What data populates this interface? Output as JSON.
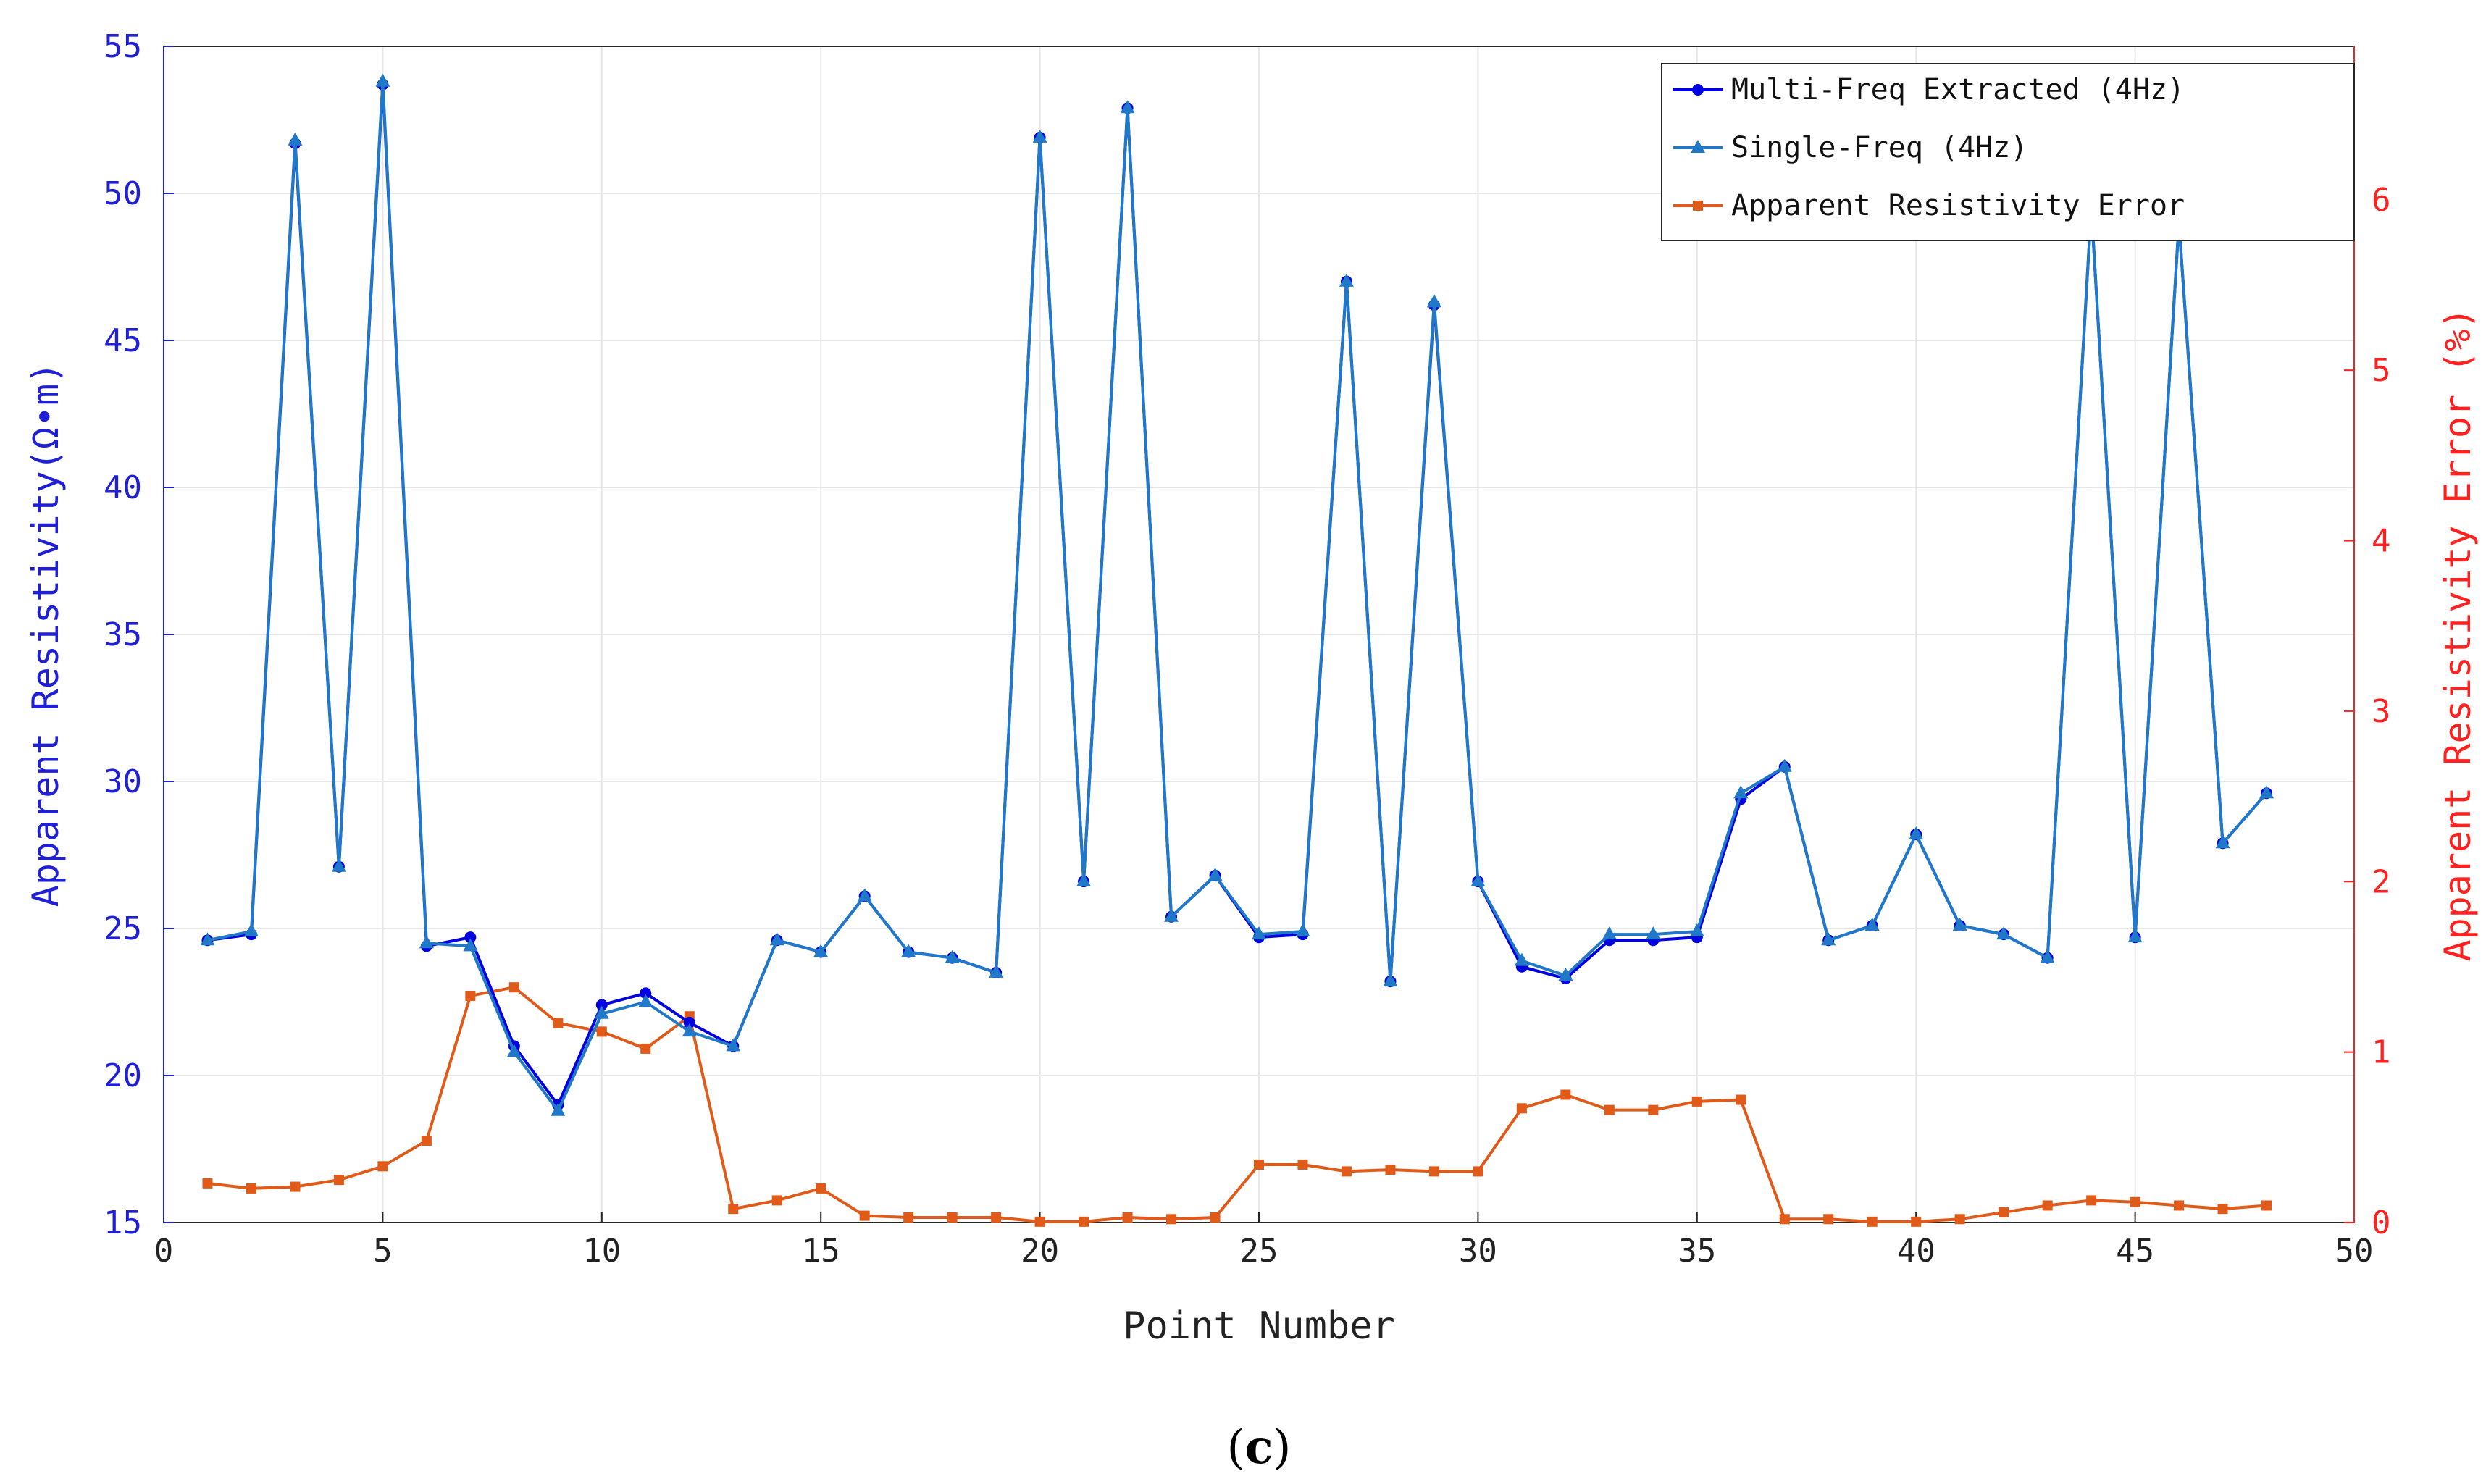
{
  "chart_data": {
    "type": "line",
    "caption_open": "(",
    "caption_letter": "c",
    "caption_close": ")",
    "xlabel": "Point Number",
    "ylabel_left": "Apparent Resistivity(Ω•m)",
    "ylabel_right": "Apparent Resistivity Error (%)",
    "xlim": [
      0,
      50
    ],
    "ylim_left": [
      15,
      55
    ],
    "ylim_right": [
      0,
      6.9
    ],
    "xticks": [
      0,
      5,
      10,
      15,
      20,
      25,
      30,
      35,
      40,
      45,
      50
    ],
    "yticks_left": [
      15,
      20,
      25,
      30,
      35,
      40,
      45,
      50,
      55
    ],
    "yticks_right": [
      0,
      1,
      2,
      3,
      4,
      5,
      6
    ],
    "grid": true,
    "legend_position": "top-right",
    "x": [
      1,
      2,
      3,
      4,
      5,
      6,
      7,
      8,
      9,
      10,
      11,
      12,
      13,
      14,
      15,
      16,
      17,
      18,
      19,
      20,
      21,
      22,
      23,
      24,
      25,
      26,
      27,
      28,
      29,
      30,
      31,
      32,
      33,
      34,
      35,
      36,
      37,
      38,
      39,
      40,
      41,
      42,
      43,
      44,
      45,
      46,
      47,
      48
    ],
    "series": [
      {
        "name": "Multi-Freq Extracted (4Hz)",
        "axis": "left",
        "color": "#0000e0",
        "marker": "circle",
        "values": [
          24.6,
          24.8,
          51.7,
          27.1,
          53.7,
          24.4,
          24.7,
          21.0,
          19.0,
          22.4,
          22.8,
          21.8,
          21.0,
          24.6,
          24.2,
          26.1,
          24.2,
          24.0,
          23.5,
          51.9,
          26.6,
          52.9,
          25.4,
          26.8,
          24.7,
          24.8,
          47.0,
          23.2,
          46.2,
          26.6,
          23.7,
          23.3,
          24.6,
          24.6,
          24.7,
          29.4,
          30.5,
          24.6,
          25.1,
          28.2,
          25.1,
          24.8,
          24.0,
          49.5,
          24.7,
          49.0,
          27.9,
          29.6
        ]
      },
      {
        "name": "Single-Freq (4Hz)",
        "axis": "left",
        "color": "#1f78c8",
        "marker": "triangle",
        "values": [
          24.6,
          24.9,
          51.8,
          27.1,
          53.8,
          24.5,
          24.4,
          20.8,
          18.8,
          22.1,
          22.5,
          21.5,
          21.0,
          24.6,
          24.2,
          26.1,
          24.2,
          24.0,
          23.5,
          51.9,
          26.6,
          52.9,
          25.4,
          26.8,
          24.8,
          24.9,
          47.0,
          23.2,
          46.3,
          26.6,
          23.9,
          23.4,
          24.8,
          24.8,
          24.9,
          29.6,
          30.5,
          24.6,
          25.1,
          28.2,
          25.1,
          24.8,
          24.0,
          49.5,
          24.7,
          49.0,
          27.9,
          29.6
        ]
      },
      {
        "name": "Apparent Resistivity Error",
        "axis": "right",
        "color": "#e05a1a",
        "marker": "square",
        "values": [
          0.23,
          0.2,
          0.21,
          0.25,
          0.33,
          0.48,
          1.33,
          1.38,
          1.17,
          1.12,
          1.02,
          1.21,
          0.08,
          0.13,
          0.2,
          0.04,
          0.03,
          0.03,
          0.03,
          0.005,
          0.005,
          0.03,
          0.02,
          0.03,
          0.34,
          0.34,
          0.3,
          0.31,
          0.3,
          0.3,
          0.67,
          0.75,
          0.66,
          0.66,
          0.71,
          0.72,
          0.02,
          0.02,
          0.005,
          0.005,
          0.02,
          0.06,
          0.1,
          0.13,
          0.12,
          0.1,
          0.08,
          0.1
        ]
      }
    ]
  }
}
